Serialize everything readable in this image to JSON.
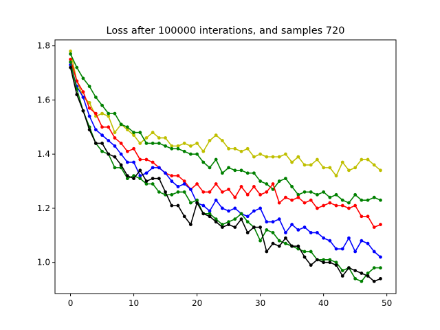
{
  "chart_data": {
    "type": "line",
    "title": "Loss after 100000 interations, and samples 720",
    "xlabel": "",
    "ylabel": "",
    "xlim": [
      -2.45,
      51.45
    ],
    "ylim": [
      0.885,
      1.822
    ],
    "xticks": [
      0,
      10,
      20,
      30,
      40,
      50
    ],
    "yticks": [
      1.0,
      1.2,
      1.4,
      1.6,
      1.8
    ],
    "ytick_labels": [
      "1.0",
      "1.2",
      "1.4",
      "1.6",
      "1.8"
    ],
    "grid": false,
    "legend": "none",
    "x": [
      0,
      1,
      2,
      3,
      4,
      5,
      6,
      7,
      8,
      9,
      10,
      11,
      12,
      13,
      14,
      15,
      16,
      17,
      18,
      19,
      20,
      21,
      22,
      23,
      24,
      25,
      26,
      27,
      28,
      29,
      30,
      31,
      32,
      33,
      34,
      35,
      36,
      37,
      38,
      39,
      40,
      41,
      42,
      43,
      44,
      45,
      46,
      47,
      48,
      49
    ],
    "series": [
      {
        "color": "#bfbf00",
        "values": [
          1.78,
          1.67,
          1.61,
          1.59,
          1.54,
          1.55,
          1.54,
          1.48,
          1.51,
          1.49,
          1.47,
          1.44,
          1.46,
          1.48,
          1.46,
          1.46,
          1.43,
          1.43,
          1.44,
          1.43,
          1.44,
          1.41,
          1.45,
          1.47,
          1.45,
          1.42,
          1.42,
          1.41,
          1.42,
          1.39,
          1.4,
          1.39,
          1.39,
          1.39,
          1.4,
          1.37,
          1.39,
          1.36,
          1.36,
          1.38,
          1.35,
          1.35,
          1.32,
          1.37,
          1.34,
          1.35,
          1.38,
          1.38,
          1.36,
          1.34
        ]
      },
      {
        "color": "#008000",
        "values": [
          1.77,
          1.72,
          1.68,
          1.65,
          1.61,
          1.58,
          1.55,
          1.55,
          1.51,
          1.5,
          1.48,
          1.48,
          1.44,
          1.44,
          1.44,
          1.43,
          1.42,
          1.42,
          1.41,
          1.4,
          1.4,
          1.37,
          1.35,
          1.38,
          1.33,
          1.35,
          1.34,
          1.34,
          1.33,
          1.33,
          1.3,
          1.29,
          1.27,
          1.3,
          1.31,
          1.28,
          1.25,
          1.26,
          1.26,
          1.25,
          1.26,
          1.24,
          1.25,
          1.23,
          1.22,
          1.25,
          1.23,
          1.23,
          1.24,
          1.23
        ]
      },
      {
        "color": "#ff0000",
        "values": [
          1.75,
          1.67,
          1.63,
          1.57,
          1.55,
          1.5,
          1.5,
          1.46,
          1.44,
          1.41,
          1.42,
          1.38,
          1.38,
          1.37,
          1.35,
          1.33,
          1.32,
          1.32,
          1.3,
          1.27,
          1.29,
          1.26,
          1.26,
          1.29,
          1.26,
          1.27,
          1.24,
          1.28,
          1.25,
          1.28,
          1.25,
          1.26,
          1.29,
          1.22,
          1.24,
          1.23,
          1.24,
          1.22,
          1.23,
          1.2,
          1.21,
          1.22,
          1.21,
          1.21,
          1.2,
          1.21,
          1.17,
          1.17,
          1.13,
          1.14
        ]
      },
      {
        "color": "#0000ff",
        "values": [
          1.73,
          1.65,
          1.61,
          1.54,
          1.49,
          1.47,
          1.45,
          1.43,
          1.4,
          1.37,
          1.37,
          1.32,
          1.33,
          1.35,
          1.35,
          1.33,
          1.3,
          1.28,
          1.29,
          1.27,
          1.22,
          1.21,
          1.19,
          1.23,
          1.2,
          1.19,
          1.2,
          1.18,
          1.17,
          1.19,
          1.2,
          1.15,
          1.15,
          1.16,
          1.11,
          1.14,
          1.12,
          1.13,
          1.11,
          1.11,
          1.09,
          1.08,
          1.05,
          1.05,
          1.09,
          1.04,
          1.08,
          1.07,
          1.04,
          1.02
        ]
      },
      {
        "color": "#008000",
        "values": [
          1.74,
          1.64,
          1.56,
          1.5,
          1.44,
          1.41,
          1.4,
          1.35,
          1.35,
          1.31,
          1.32,
          1.31,
          1.29,
          1.29,
          1.26,
          1.25,
          1.25,
          1.26,
          1.26,
          1.22,
          1.23,
          1.18,
          1.18,
          1.16,
          1.14,
          1.15,
          1.16,
          1.18,
          1.15,
          1.13,
          1.08,
          1.12,
          1.11,
          1.08,
          1.07,
          1.06,
          1.05,
          1.04,
          1.04,
          1.01,
          1.01,
          1.01,
          1.0,
          0.97,
          0.98,
          0.94,
          0.93,
          0.96,
          0.98,
          0.98
        ]
      },
      {
        "color": "#000000",
        "values": [
          1.72,
          1.62,
          1.56,
          1.49,
          1.44,
          1.44,
          1.4,
          1.39,
          1.36,
          1.32,
          1.31,
          1.34,
          1.3,
          1.31,
          1.31,
          1.26,
          1.21,
          1.21,
          1.17,
          1.14,
          1.22,
          1.18,
          1.17,
          1.15,
          1.13,
          1.14,
          1.13,
          1.16,
          1.11,
          1.13,
          1.13,
          1.04,
          1.07,
          1.06,
          1.09,
          1.06,
          1.06,
          1.02,
          0.99,
          1.01,
          1.0,
          1.0,
          0.99,
          0.95,
          0.98,
          0.97,
          0.96,
          0.95,
          0.93,
          0.94
        ]
      }
    ]
  }
}
